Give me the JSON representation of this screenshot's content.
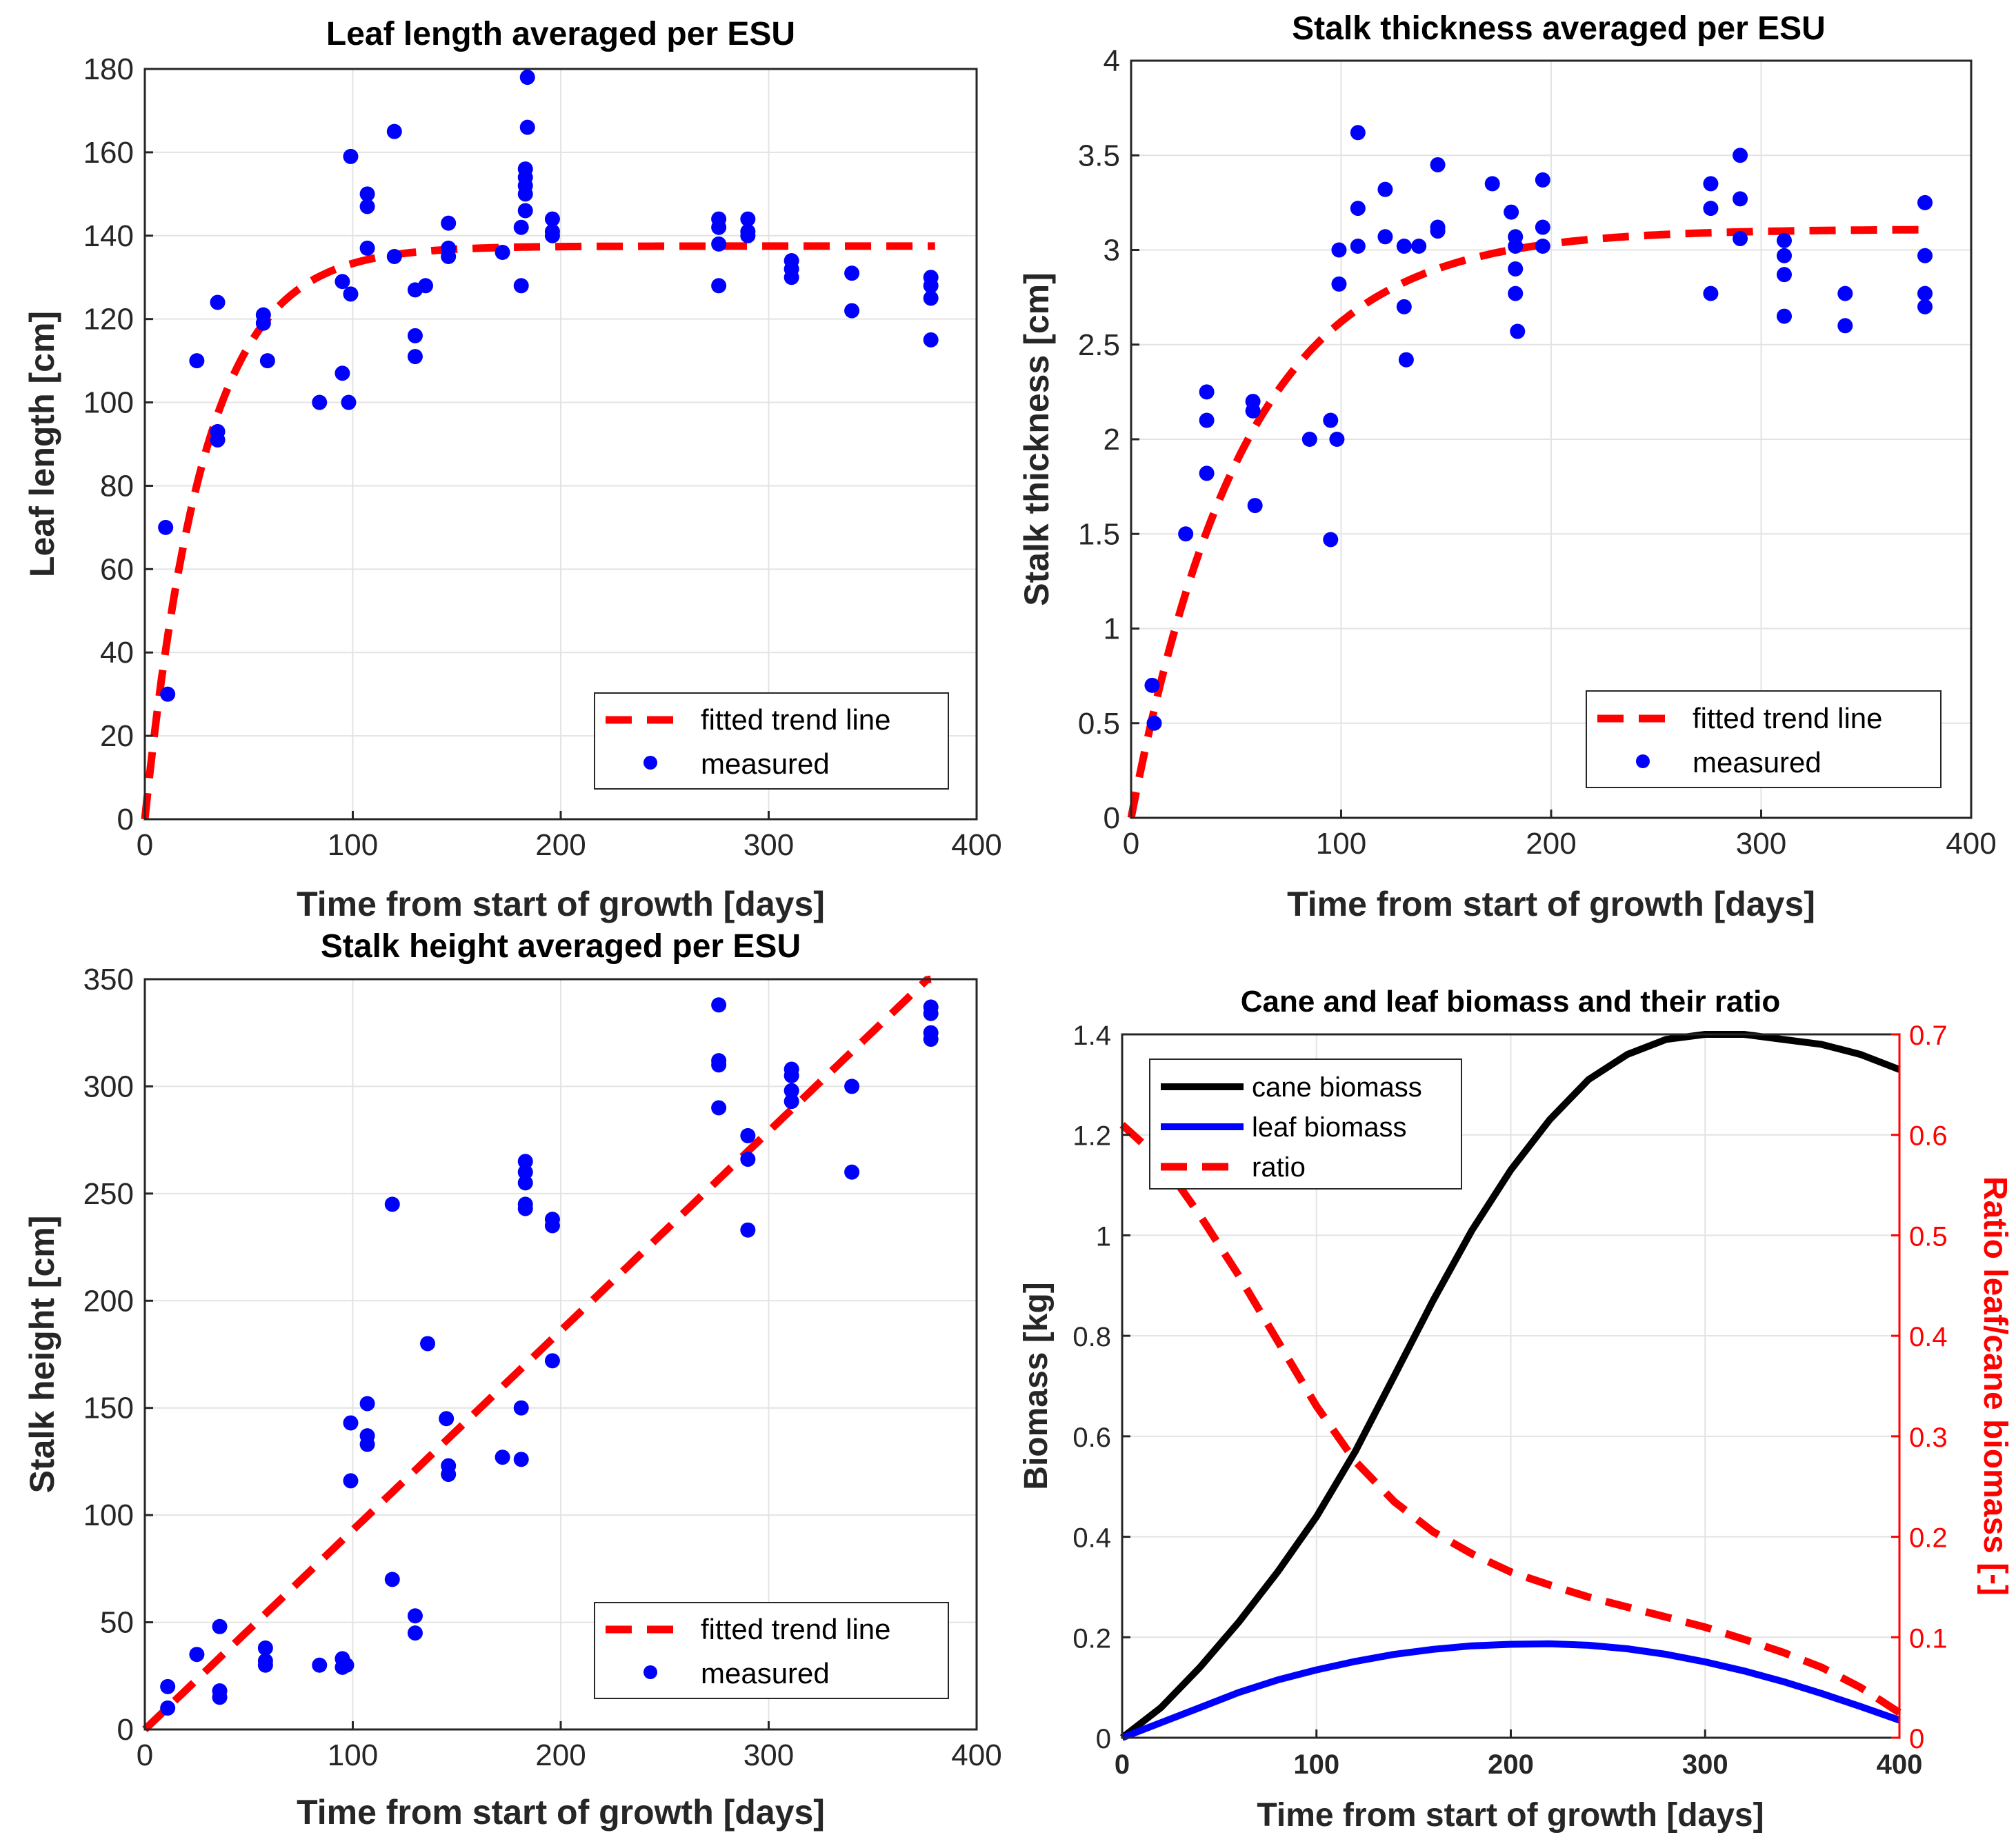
{
  "chart_data": [
    {
      "type": "scatter",
      "title": "Leaf length averaged per ESU",
      "xlabel": "Time from start of growth [days]",
      "ylabel": "Leaf length [cm]",
      "xlim": [
        0,
        400
      ],
      "ylim": [
        0,
        180
      ],
      "xticks": [
        0,
        100,
        200,
        300,
        400
      ],
      "yticks": [
        0,
        20,
        40,
        60,
        80,
        100,
        120,
        140,
        160,
        180
      ],
      "grid": true,
      "legend": {
        "position": "bottom-right",
        "entries": [
          "fitted trend line",
          "measured"
        ]
      },
      "colors": {
        "fit": "#ff0000",
        "measured": "#0000ff"
      },
      "fit": {
        "name": "fitted trend line",
        "model": "saturating exponential",
        "asymptote": 137.5,
        "rate": 0.035,
        "x_end": 380
      },
      "series": [
        {
          "name": "measured",
          "x": [
            10,
            11,
            25,
            35,
            35,
            35,
            57,
            57,
            59,
            84,
            95,
            95,
            98,
            99,
            99,
            107,
            107,
            107,
            120,
            120,
            130,
            130,
            130,
            135,
            146,
            146,
            146,
            172,
            181,
            181,
            183,
            183,
            183,
            183,
            183,
            184,
            184,
            196,
            196,
            196,
            276,
            276,
            276,
            276,
            290,
            290,
            290,
            311,
            311,
            311,
            340,
            340,
            378,
            378,
            378,
            378
          ],
          "y": [
            70,
            30,
            110,
            124,
            93,
            91,
            121,
            119,
            110,
            100,
            129,
            107,
            100,
            159,
            126,
            150,
            147,
            137,
            165,
            135,
            127,
            116,
            111,
            128,
            143,
            137,
            135,
            136,
            142,
            128,
            156,
            154,
            152,
            150,
            146,
            178,
            166,
            144,
            141,
            140,
            144,
            142,
            138,
            128,
            144,
            141,
            140,
            134,
            132,
            130,
            131,
            122,
            130,
            128,
            125,
            115
          ]
        }
      ]
    },
    {
      "type": "scatter",
      "title": "Stalk thickness averaged per ESU",
      "xlabel": "Time from start of growth [days]",
      "ylabel": "Stalk thickness [cm]",
      "xlim": [
        0,
        400
      ],
      "ylim": [
        0,
        4
      ],
      "xticks": [
        0,
        100,
        200,
        300,
        400
      ],
      "yticks": [
        0,
        0.5,
        1,
        1.5,
        2,
        2.5,
        3,
        3.5,
        4
      ],
      "grid": true,
      "legend": {
        "position": "bottom-right",
        "entries": [
          "fitted trend line",
          "measured"
        ]
      },
      "colors": {
        "fit": "#ff0000",
        "measured": "#0000ff"
      },
      "fit": {
        "name": "fitted trend line",
        "model": "saturating exponential",
        "asymptote": 3.11,
        "rate": 0.0185,
        "x_end": 380
      },
      "series": [
        {
          "name": "measured",
          "x": [
            10,
            11,
            26,
            36,
            36,
            36,
            58,
            58,
            59,
            85,
            95,
            95,
            98,
            99,
            99,
            108,
            108,
            108,
            121,
            121,
            130,
            130,
            131,
            137,
            146,
            146,
            146,
            172,
            181,
            183,
            183,
            183,
            183,
            184,
            196,
            196,
            196,
            276,
            276,
            276,
            290,
            290,
            290,
            311,
            311,
            311,
            311,
            340,
            340,
            378,
            378,
            378,
            378
          ],
          "y": [
            0.7,
            0.5,
            1.5,
            2.25,
            2.1,
            1.82,
            2.2,
            2.15,
            1.65,
            2.0,
            2.1,
            1.47,
            2.0,
            3.0,
            2.82,
            3.62,
            3.22,
            3.02,
            3.32,
            3.07,
            3.02,
            2.7,
            2.42,
            3.02,
            3.45,
            3.12,
            3.1,
            3.35,
            3.2,
            3.07,
            3.02,
            2.9,
            2.77,
            2.57,
            3.37,
            3.12,
            3.02,
            3.35,
            3.22,
            2.77,
            3.5,
            3.27,
            3.06,
            3.05,
            2.97,
            2.87,
            2.65,
            2.77,
            2.6,
            3.25,
            2.97,
            2.77,
            2.7
          ]
        }
      ]
    },
    {
      "type": "scatter",
      "title": "Stalk height averaged per ESU",
      "xlabel": "Time from start of growth [days]",
      "ylabel": "Stalk height [cm]",
      "xlim": [
        0,
        400
      ],
      "ylim": [
        0,
        350
      ],
      "xticks": [
        0,
        100,
        200,
        300,
        400
      ],
      "yticks": [
        0,
        50,
        100,
        150,
        200,
        250,
        300,
        350
      ],
      "grid": true,
      "legend": {
        "position": "bottom-right",
        "entries": [
          "fitted trend line",
          "measured"
        ]
      },
      "colors": {
        "fit": "#ff0000",
        "measured": "#0000ff"
      },
      "fit": {
        "name": "fitted trend line",
        "model": "linear",
        "slope": 0.93,
        "intercept": 0,
        "x_end": 378
      },
      "series": [
        {
          "name": "measured",
          "x": [
            11,
            11,
            25,
            36,
            36,
            36,
            58,
            58,
            58,
            84,
            95,
            95,
            97,
            99,
            99,
            107,
            107,
            107,
            119,
            119,
            130,
            130,
            136,
            145,
            146,
            146,
            172,
            181,
            181,
            183,
            183,
            183,
            183,
            183,
            196,
            196,
            196,
            276,
            276,
            276,
            276,
            290,
            290,
            290,
            311,
            311,
            311,
            311,
            340,
            340,
            378,
            378,
            378,
            378
          ],
          "y": [
            20,
            10,
            35,
            48,
            18,
            15,
            38,
            32,
            30,
            30,
            33,
            29,
            30,
            143,
            116,
            152,
            137,
            133,
            245,
            70,
            53,
            45,
            180,
            145,
            123,
            119,
            127,
            150,
            126,
            265,
            260,
            255,
            245,
            243,
            238,
            235,
            172,
            338,
            312,
            310,
            290,
            277,
            266,
            233,
            308,
            305,
            298,
            293,
            300,
            260,
            337,
            334,
            325,
            322
          ]
        }
      ]
    },
    {
      "type": "line",
      "title": "Cane and leaf biomass and their ratio",
      "xlabel": "Time from start of growth [days]",
      "ylabel": "Biomass [kg]",
      "ylabel_right": "Ratio leaf/cane biomass [-]",
      "xlim": [
        0,
        400
      ],
      "ylim": [
        0,
        1.4
      ],
      "ylim_right": [
        0,
        0.7
      ],
      "xticks": [
        0,
        100,
        200,
        300,
        400
      ],
      "yticks": [
        0,
        0.2,
        0.4,
        0.6,
        0.8,
        1,
        1.2,
        1.4
      ],
      "yticks_right": [
        0,
        0.1,
        0.2,
        0.3,
        0.4,
        0.5,
        0.6,
        0.7
      ],
      "grid": true,
      "legend": {
        "position": "top-left",
        "entries": [
          "cane biomass",
          "leaf biomass",
          "ratio"
        ]
      },
      "colors": {
        "cane": "#000000",
        "leaf": "#0000ff",
        "ratio": "#ff0000"
      },
      "x": [
        0,
        20,
        40,
        60,
        80,
        100,
        120,
        140,
        160,
        180,
        200,
        220,
        240,
        260,
        280,
        300,
        320,
        340,
        360,
        380,
        400
      ],
      "series": [
        {
          "name": "cane biomass",
          "axis": "left",
          "values": [
            0.0,
            0.06,
            0.14,
            0.23,
            0.33,
            0.44,
            0.57,
            0.72,
            0.87,
            1.01,
            1.13,
            1.23,
            1.31,
            1.36,
            1.39,
            1.4,
            1.4,
            1.39,
            1.38,
            1.36,
            1.33
          ]
        },
        {
          "name": "leaf biomass",
          "axis": "left",
          "values": [
            0.0,
            0.03,
            0.06,
            0.09,
            0.115,
            0.135,
            0.152,
            0.166,
            0.176,
            0.183,
            0.186,
            0.187,
            0.184,
            0.177,
            0.166,
            0.151,
            0.133,
            0.112,
            0.088,
            0.062,
            0.035
          ]
        },
        {
          "name": "ratio",
          "axis": "right",
          "values": [
            0.61,
            0.575,
            0.52,
            0.46,
            0.395,
            0.33,
            0.275,
            0.235,
            0.205,
            0.183,
            0.165,
            0.152,
            0.14,
            0.13,
            0.12,
            0.11,
            0.098,
            0.085,
            0.07,
            0.05,
            0.025
          ]
        }
      ]
    }
  ]
}
